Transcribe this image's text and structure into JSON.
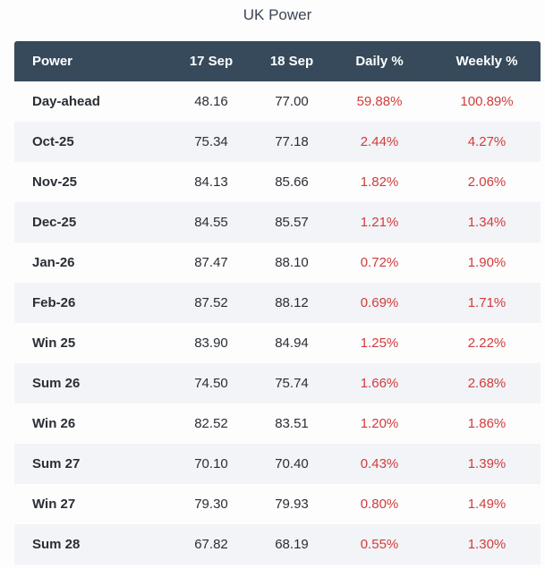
{
  "title": "UK Power",
  "headers": {
    "name": "Power",
    "sep17": "17 Sep",
    "sep18": "18 Sep",
    "daily": "Daily %",
    "weekly": "Weekly %"
  },
  "rows": [
    {
      "name": "Day-ahead",
      "sep17": "48.16",
      "sep18": "77.00",
      "daily": "59.88%",
      "weekly": "100.89%"
    },
    {
      "name": "Oct-25",
      "sep17": "75.34",
      "sep18": "77.18",
      "daily": "2.44%",
      "weekly": "4.27%"
    },
    {
      "name": "Nov-25",
      "sep17": "84.13",
      "sep18": "85.66",
      "daily": "1.82%",
      "weekly": "2.06%"
    },
    {
      "name": "Dec-25",
      "sep17": "84.55",
      "sep18": "85.57",
      "daily": "1.21%",
      "weekly": "1.34%"
    },
    {
      "name": "Jan-26",
      "sep17": "87.47",
      "sep18": "88.10",
      "daily": "0.72%",
      "weekly": "1.90%"
    },
    {
      "name": "Feb-26",
      "sep17": "87.52",
      "sep18": "88.12",
      "daily": "0.69%",
      "weekly": "1.71%"
    },
    {
      "name": "Win 25",
      "sep17": "83.90",
      "sep18": "84.94",
      "daily": "1.25%",
      "weekly": "2.22%"
    },
    {
      "name": "Sum 26",
      "sep17": "74.50",
      "sep18": "75.74",
      "daily": "1.66%",
      "weekly": "2.68%"
    },
    {
      "name": "Win 26",
      "sep17": "82.52",
      "sep18": "83.51",
      "daily": "1.20%",
      "weekly": "1.86%"
    },
    {
      "name": "Sum 27",
      "sep17": "70.10",
      "sep18": "70.40",
      "daily": "0.43%",
      "weekly": "1.39%"
    },
    {
      "name": "Win 27",
      "sep17": "79.30",
      "sep18": "79.93",
      "daily": "0.80%",
      "weekly": "1.49%"
    },
    {
      "name": "Sum 28",
      "sep17": "67.82",
      "sep18": "68.19",
      "daily": "0.55%",
      "weekly": "1.30%"
    }
  ],
  "colors": {
    "header_bg": "#364a5b",
    "positive_change": "#d23b3b",
    "alt_row_bg": "#f2f4f7"
  }
}
